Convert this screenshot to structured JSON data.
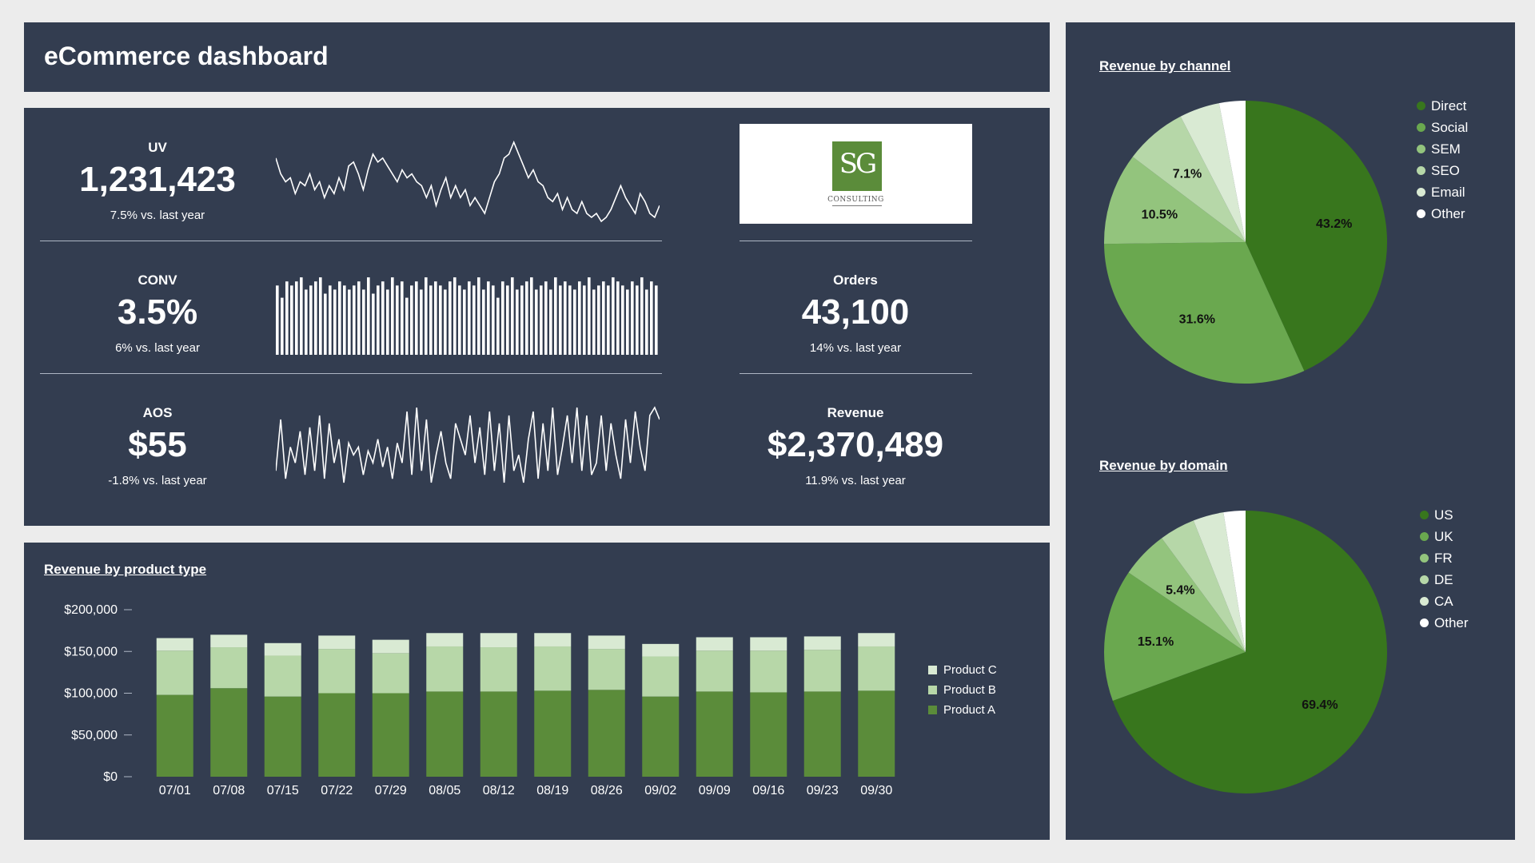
{
  "title": "eCommerce dashboard",
  "kpis": {
    "uv": {
      "label": "UV",
      "value": "1,231,423",
      "sub": "7.5% vs. last year"
    },
    "conv": {
      "label": "CONV",
      "value": "3.5%",
      "sub": "6% vs. last year"
    },
    "aos": {
      "label": "AOS",
      "value": "$55",
      "sub": "-1.8% vs. last year"
    },
    "orders": {
      "label": "Orders",
      "value": "43,100",
      "sub": "14% vs. last year"
    },
    "revenue": {
      "label": "Revenue",
      "value": "$2,370,489",
      "sub": "11.9% vs. last year"
    }
  },
  "logo": {
    "letters": "SG",
    "caption": "CONSULTING"
  },
  "sparklines": {
    "uv": [
      0.8,
      0.6,
      0.5,
      0.55,
      0.35,
      0.5,
      0.45,
      0.6,
      0.4,
      0.5,
      0.3,
      0.45,
      0.35,
      0.55,
      0.4,
      0.7,
      0.75,
      0.6,
      0.4,
      0.65,
      0.85,
      0.75,
      0.8,
      0.7,
      0.6,
      0.5,
      0.65,
      0.55,
      0.6,
      0.5,
      0.45,
      0.3,
      0.45,
      0.2,
      0.4,
      0.55,
      0.3,
      0.45,
      0.3,
      0.4,
      0.2,
      0.3,
      0.2,
      0.1,
      0.3,
      0.5,
      0.6,
      0.8,
      0.85,
      1.0,
      0.85,
      0.7,
      0.55,
      0.65,
      0.5,
      0.45,
      0.3,
      0.25,
      0.35,
      0.15,
      0.3,
      0.15,
      0.1,
      0.25,
      0.1,
      0.05,
      0.1,
      0.0,
      0.05,
      0.15,
      0.3,
      0.45,
      0.3,
      0.2,
      0.1,
      0.35,
      0.25,
      0.1,
      0.05,
      0.2
    ],
    "conv": [
      0.85,
      0.7,
      0.9,
      0.85,
      0.9,
      0.95,
      0.8,
      0.85,
      0.9,
      0.95,
      0.75,
      0.85,
      0.8,
      0.9,
      0.85,
      0.8,
      0.85,
      0.9,
      0.8,
      0.95,
      0.75,
      0.85,
      0.9,
      0.8,
      0.95,
      0.85,
      0.9,
      0.7,
      0.85,
      0.9,
      0.8,
      0.95,
      0.85,
      0.9,
      0.85,
      0.8,
      0.9,
      0.95,
      0.85,
      0.8,
      0.9,
      0.85,
      0.95,
      0.8,
      0.9,
      0.85,
      0.7,
      0.9,
      0.85,
      0.95,
      0.8,
      0.85,
      0.9,
      0.95,
      0.8,
      0.85,
      0.9,
      0.8,
      0.95,
      0.85,
      0.9,
      0.85,
      0.8,
      0.9,
      0.85,
      0.95,
      0.8,
      0.85,
      0.9,
      0.85,
      0.95,
      0.9,
      0.85,
      0.8,
      0.9,
      0.85,
      0.95,
      0.8,
      0.9,
      0.85
    ],
    "aos": [
      0.2,
      0.85,
      0.1,
      0.5,
      0.3,
      0.7,
      0.15,
      0.75,
      0.2,
      0.9,
      0.1,
      0.8,
      0.3,
      0.6,
      0.05,
      0.55,
      0.4,
      0.5,
      0.15,
      0.45,
      0.3,
      0.6,
      0.25,
      0.5,
      0.1,
      0.55,
      0.3,
      0.95,
      0.15,
      1.0,
      0.2,
      0.85,
      0.05,
      0.4,
      0.7,
      0.3,
      0.1,
      0.8,
      0.6,
      0.4,
      0.9,
      0.3,
      0.75,
      0.15,
      0.95,
      0.2,
      0.8,
      0.05,
      0.9,
      0.2,
      0.4,
      0.05,
      0.6,
      0.95,
      0.1,
      0.8,
      0.2,
      1.0,
      0.15,
      0.5,
      0.9,
      0.3,
      1.0,
      0.2,
      0.9,
      0.15,
      0.3,
      0.9,
      0.2,
      0.8,
      0.4,
      0.1,
      0.85,
      0.3,
      0.95,
      0.5,
      0.2,
      0.9,
      1.0,
      0.85
    ]
  },
  "bar_section": {
    "title": "Revenue by product type"
  },
  "chart_data": [
    {
      "type": "bar",
      "stacked": true,
      "title": "Revenue by product type",
      "categories": [
        "07/01",
        "07/08",
        "07/15",
        "07/22",
        "07/29",
        "08/05",
        "08/12",
        "08/19",
        "08/26",
        "09/02",
        "09/09",
        "09/16",
        "09/23",
        "09/30"
      ],
      "series": [
        {
          "name": "Product A",
          "color": "#5b8c3a",
          "values": [
            98000,
            106000,
            96000,
            100000,
            100000,
            102000,
            102000,
            103000,
            104000,
            96000,
            102000,
            101000,
            102000,
            103000
          ]
        },
        {
          "name": "Product B",
          "color": "#b7d7a8",
          "values": [
            53000,
            49000,
            49000,
            53000,
            48000,
            54000,
            53000,
            53000,
            49000,
            48000,
            49000,
            50000,
            50000,
            53000
          ]
        },
        {
          "name": "Product C",
          "color": "#d9ead3",
          "values": [
            15000,
            15000,
            15000,
            16000,
            16000,
            16000,
            17000,
            16000,
            16000,
            15000,
            16000,
            16000,
            16000,
            16000
          ]
        }
      ],
      "yticks": [
        "$200,000",
        "$150,000",
        "$100,000",
        "$50,000",
        "$0"
      ],
      "ylim": [
        0,
        200000
      ],
      "legend": "right"
    },
    {
      "type": "pie",
      "title": "Revenue by channel",
      "labels": [
        "Direct",
        "Social",
        "SEM",
        "SEO",
        "Email",
        "Other"
      ],
      "values": [
        43.2,
        31.6,
        10.5,
        7.1,
        4.6,
        3.0
      ],
      "data_labels": [
        "43.2%",
        "31.6%",
        "10.5%",
        "7.1%",
        "",
        ""
      ],
      "colors": [
        "#38761d",
        "#6aa84f",
        "#93c47d",
        "#b6d7a8",
        "#d9ead3",
        "#ffffff"
      ],
      "legend": "right"
    },
    {
      "type": "pie",
      "title": "Revenue by domain",
      "labels": [
        "US",
        "UK",
        "FR",
        "DE",
        "CA",
        "Other"
      ],
      "values": [
        69.4,
        15.1,
        5.4,
        4.1,
        3.5,
        2.5
      ],
      "data_labels": [
        "69.4%",
        "15.1%",
        "5.4%",
        "",
        "",
        ""
      ],
      "colors": [
        "#38761d",
        "#6aa84f",
        "#93c47d",
        "#b6d7a8",
        "#d9ead3",
        "#ffffff"
      ],
      "legend": "right"
    }
  ]
}
